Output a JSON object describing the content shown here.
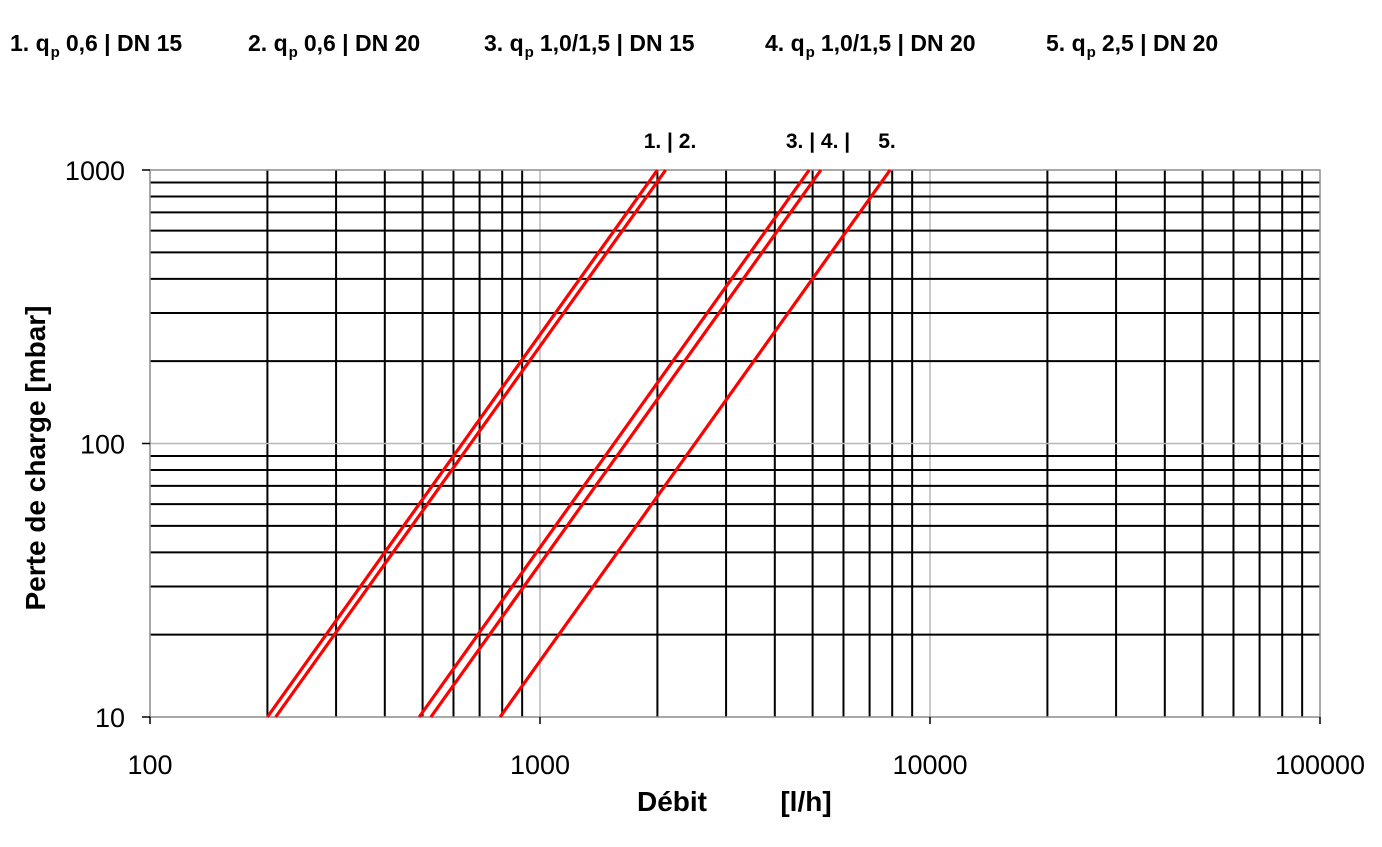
{
  "legend": [
    {
      "num": "1.",
      "q": "q",
      "sub": "p",
      "rest": "0,6 | DN 15"
    },
    {
      "num": "2.",
      "q": "q",
      "sub": "p",
      "rest": "0,6 | DN 20"
    },
    {
      "num": "3.",
      "q": "q",
      "sub": "p",
      "rest": "1,0/1,5 | DN 15"
    },
    {
      "num": "4.",
      "q": "q",
      "sub": "p",
      "rest": "1,0/1,5 | DN 20"
    },
    {
      "num": "5.",
      "q": "q",
      "sub": "p",
      "rest": "2,5 | DN 20"
    }
  ],
  "curve_labels": {
    "group_a": "1. | 2.",
    "group_b": "3. | 4. |",
    "group_c": "5."
  },
  "chart_data": {
    "type": "line",
    "xscale": "log",
    "yscale": "log",
    "xlabel": "Débit",
    "xunit": "[l/h]",
    "ylabel": "Perte de charge  [mbar]",
    "xlim": [
      100,
      100000
    ],
    "ylim": [
      10,
      1000
    ],
    "xticks": [
      "100",
      "1000",
      "10000",
      "100000"
    ],
    "yticks": [
      "10",
      "100",
      "1000"
    ],
    "grid": true,
    "line_color": "#ff0000",
    "grid_color": "#000000",
    "series": [
      {
        "x": [
          200,
          2000
        ],
        "y": [
          10,
          1000
        ]
      },
      {
        "x": [
          210,
          2100
        ],
        "y": [
          10,
          1000
        ]
      },
      {
        "x": [
          490,
          4900
        ],
        "y": [
          10,
          1000
        ]
      },
      {
        "x": [
          525,
          5250
        ],
        "y": [
          10,
          1000
        ]
      },
      {
        "x": [
          790,
          7900
        ],
        "y": [
          10,
          1000
        ]
      }
    ]
  }
}
